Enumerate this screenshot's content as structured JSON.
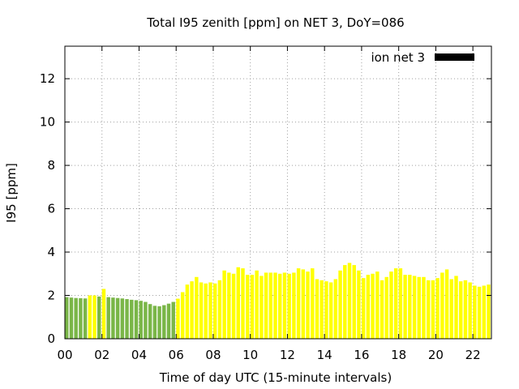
{
  "chart_data": {
    "type": "bar",
    "title": "Total I95 zenith [ppm] on NET 3, DoY=086",
    "xlabel": "Time of day UTC (15-minute intervals)",
    "ylabel": "I95 [ppm]",
    "xlim": [
      0,
      23
    ],
    "ylim": [
      0,
      13.5
    ],
    "x_ticks": [
      "00",
      "02",
      "04",
      "06",
      "08",
      "10",
      "12",
      "14",
      "16",
      "18",
      "20",
      "22"
    ],
    "y_ticks": [
      "0",
      "2",
      "4",
      "6",
      "8",
      "10",
      "12"
    ],
    "grid": true,
    "legend": {
      "position": "top-right",
      "entries": [
        {
          "label": "ion net 3",
          "color": "#000000"
        }
      ]
    },
    "colors": {
      "green": "#7ab648",
      "yellow": "#ffff00"
    },
    "series": [
      {
        "x_hours": [
          0.0,
          0.25,
          0.5,
          0.75,
          1.0,
          1.25,
          1.5,
          1.75,
          2.0,
          2.25,
          2.5,
          2.75,
          3.0,
          3.25,
          3.5,
          3.75,
          4.0,
          4.25,
          4.5,
          4.75,
          5.0,
          5.25,
          5.5,
          5.75,
          6.0,
          6.25,
          6.5,
          6.75,
          7.0,
          7.25,
          7.5,
          7.75,
          8.0,
          8.25,
          8.5,
          8.75,
          9.0,
          9.25,
          9.5,
          9.75,
          10.0,
          10.25,
          10.5,
          10.75,
          11.0,
          11.25,
          11.5,
          11.75,
          12.0,
          12.25,
          12.5,
          12.75,
          13.0,
          13.25,
          13.5,
          13.75,
          14.0,
          14.25,
          14.5,
          14.75,
          15.0,
          15.25,
          15.5,
          15.75,
          16.0,
          16.25,
          16.5,
          16.75,
          17.0,
          17.25,
          17.5,
          17.75,
          18.0,
          18.25,
          18.5,
          18.75,
          19.0,
          19.25,
          19.5,
          19.75,
          20.0,
          20.25,
          20.5,
          20.75,
          21.0,
          21.25,
          21.5,
          21.75,
          22.0,
          22.25,
          22.5,
          22.75
        ],
        "values": [
          1.92,
          1.9,
          1.88,
          1.87,
          1.86,
          2.0,
          2.0,
          1.95,
          2.3,
          1.92,
          1.9,
          1.88,
          1.86,
          1.83,
          1.8,
          1.78,
          1.75,
          1.7,
          1.6,
          1.52,
          1.5,
          1.55,
          1.62,
          1.7,
          1.85,
          2.15,
          2.5,
          2.65,
          2.85,
          2.6,
          2.55,
          2.6,
          2.55,
          2.7,
          3.15,
          3.05,
          3.0,
          3.3,
          3.25,
          2.95,
          2.95,
          3.15,
          2.9,
          3.05,
          3.05,
          3.05,
          3.0,
          3.05,
          3.0,
          3.05,
          3.25,
          3.2,
          3.1,
          3.25,
          2.75,
          2.7,
          2.65,
          2.6,
          2.75,
          3.15,
          3.4,
          3.5,
          3.4,
          3.15,
          2.8,
          2.95,
          3.0,
          3.1,
          2.7,
          2.85,
          3.1,
          3.25,
          3.25,
          2.95,
          2.95,
          2.9,
          2.85,
          2.85,
          2.7,
          2.7,
          2.8,
          3.05,
          3.2,
          2.75,
          2.9,
          2.65,
          2.7,
          2.6,
          2.45,
          2.4,
          2.45,
          2.5
        ],
        "colors": [
          "green",
          "green",
          "green",
          "green",
          "green",
          "yellow",
          "yellow",
          "green",
          "yellow",
          "green",
          "green",
          "green",
          "green",
          "green",
          "green",
          "green",
          "green",
          "green",
          "green",
          "green",
          "green",
          "green",
          "green",
          "green",
          "yellow",
          "yellow",
          "yellow",
          "yellow",
          "yellow",
          "yellow",
          "yellow",
          "yellow",
          "yellow",
          "yellow",
          "yellow",
          "yellow",
          "yellow",
          "yellow",
          "yellow",
          "yellow",
          "yellow",
          "yellow",
          "yellow",
          "yellow",
          "yellow",
          "yellow",
          "yellow",
          "yellow",
          "yellow",
          "yellow",
          "yellow",
          "yellow",
          "yellow",
          "yellow",
          "yellow",
          "yellow",
          "yellow",
          "yellow",
          "yellow",
          "yellow",
          "yellow",
          "yellow",
          "yellow",
          "yellow",
          "yellow",
          "yellow",
          "yellow",
          "yellow",
          "yellow",
          "yellow",
          "yellow",
          "yellow",
          "yellow",
          "yellow",
          "yellow",
          "yellow",
          "yellow",
          "yellow",
          "yellow",
          "yellow",
          "yellow",
          "yellow",
          "yellow",
          "yellow",
          "yellow",
          "yellow",
          "yellow",
          "yellow",
          "yellow",
          "yellow",
          "yellow",
          "yellow"
        ]
      }
    ]
  }
}
